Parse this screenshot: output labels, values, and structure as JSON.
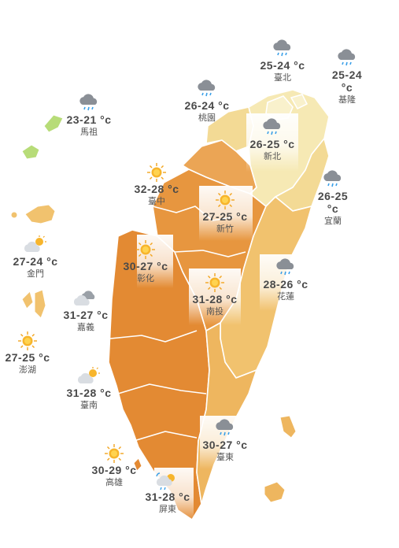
{
  "colors": {
    "hot_dark": "#e38a33",
    "hot_mid": "#eba555",
    "warm": "#f1c26e",
    "mild": "#f3da95",
    "cool": "#f6e9b4",
    "green": "#b7dc78",
    "border": "#ffffff"
  },
  "cities": [
    {
      "id": "taipei",
      "temp": "25-24 °c",
      "name": "臺北",
      "icon": "rain-cloud-icon"
    },
    {
      "id": "keelung",
      "temp": "25-24 °c",
      "name": "基隆",
      "icon": "rain-cloud-icon"
    },
    {
      "id": "taoyuan",
      "temp": "26-24 °c",
      "name": "桃園",
      "icon": "rain-cloud-icon"
    },
    {
      "id": "matsu",
      "temp": "23-21 °c",
      "name": "馬祖",
      "icon": "rain-cloud-icon"
    },
    {
      "id": "newtaipei",
      "temp": "26-25 °c",
      "name": "新北",
      "icon": "rain-cloud-icon"
    },
    {
      "id": "taichung",
      "temp": "32-28 °c",
      "name": "臺中",
      "icon": "sun-icon"
    },
    {
      "id": "yilan",
      "temp": "26-25 °c",
      "name": "宜蘭",
      "icon": "rain-cloud-icon"
    },
    {
      "id": "hsinchu",
      "temp": "27-25 °c",
      "name": "新竹",
      "icon": "sun-icon"
    },
    {
      "id": "kinmen",
      "temp": "27-24 °c",
      "name": "金門",
      "icon": "partly-sunny-icon"
    },
    {
      "id": "changhua",
      "temp": "30-27 °c",
      "name": "彰化",
      "icon": "sun-icon"
    },
    {
      "id": "hualien",
      "temp": "28-26 °c",
      "name": "花蓮",
      "icon": "rain-cloud-icon"
    },
    {
      "id": "nantou",
      "temp": "31-28 °c",
      "name": "南投",
      "icon": "sun-icon"
    },
    {
      "id": "chiayi",
      "temp": "31-27 °c",
      "name": "嘉義",
      "icon": "cloudy-icon"
    },
    {
      "id": "penghu",
      "temp": "27-25 °c",
      "name": "澎湖",
      "icon": "sun-icon"
    },
    {
      "id": "tainan",
      "temp": "31-28 °c",
      "name": "臺南",
      "icon": "partly-sunny-icon"
    },
    {
      "id": "taitung",
      "temp": "30-27 °c",
      "name": "臺東",
      "icon": "rain-cloud-icon"
    },
    {
      "id": "kaohsiung",
      "temp": "30-29 °c",
      "name": "高雄",
      "icon": "sun-icon"
    },
    {
      "id": "pingtung",
      "temp": "31-28 °c",
      "name": "屏東",
      "icon": "sun-rain-icon"
    }
  ]
}
